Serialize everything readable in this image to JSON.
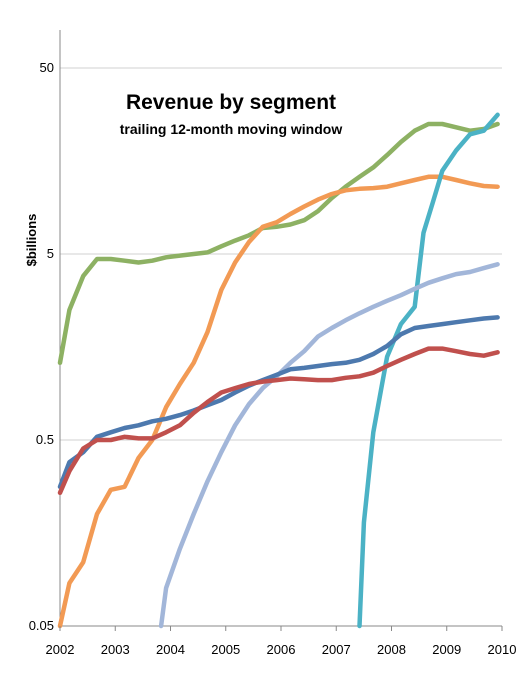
{
  "chart_data": {
    "type": "line",
    "title": "Revenue by segment",
    "subtitle": "trailing 12-month moving window",
    "ylabel": "$billions",
    "xlabel": "",
    "y_scale": "log",
    "ylim": [
      0.05,
      80
    ],
    "xlim": [
      2002,
      2010
    ],
    "y_ticks": [
      {
        "value": 0.05,
        "label": "0.05"
      },
      {
        "value": 0.5,
        "label": "0.5"
      },
      {
        "value": 5,
        "label": "5"
      },
      {
        "value": 50,
        "label": "50"
      }
    ],
    "x_ticks": [
      {
        "value": 2002,
        "label": "2002"
      },
      {
        "value": 2003,
        "label": "2003"
      },
      {
        "value": 2004,
        "label": "2004"
      },
      {
        "value": 2005,
        "label": "2005"
      },
      {
        "value": 2006,
        "label": "2006"
      },
      {
        "value": 2007,
        "label": "2007"
      },
      {
        "value": 2008,
        "label": "2008"
      },
      {
        "value": 2009,
        "label": "2009"
      },
      {
        "value": 2010,
        "label": "2010"
      }
    ],
    "grid": true,
    "legend": "none",
    "series": [
      {
        "color": "#8db163",
        "points": [
          [
            2002,
            1.3
          ],
          [
            2002.17,
            2.5
          ],
          [
            2002.42,
            3.8
          ],
          [
            2002.67,
            4.7
          ],
          [
            2002.92,
            4.7
          ],
          [
            2003.17,
            4.6
          ],
          [
            2003.42,
            4.5
          ],
          [
            2003.67,
            4.6
          ],
          [
            2003.92,
            4.8
          ],
          [
            2004.17,
            4.9
          ],
          [
            2004.42,
            5.0
          ],
          [
            2004.67,
            5.1
          ],
          [
            2004.92,
            5.5
          ],
          [
            2005.17,
            5.9
          ],
          [
            2005.42,
            6.3
          ],
          [
            2005.67,
            6.9
          ],
          [
            2005.92,
            7.0
          ],
          [
            2006.17,
            7.2
          ],
          [
            2006.42,
            7.6
          ],
          [
            2006.67,
            8.5
          ],
          [
            2006.92,
            10.0
          ],
          [
            2007.17,
            11.5
          ],
          [
            2007.42,
            13.0
          ],
          [
            2007.67,
            14.6
          ],
          [
            2007.92,
            17.0
          ],
          [
            2008.17,
            20.0
          ],
          [
            2008.42,
            23.0
          ],
          [
            2008.67,
            25.0
          ],
          [
            2008.92,
            25.0
          ],
          [
            2009.17,
            24.0
          ],
          [
            2009.42,
            23.0
          ],
          [
            2009.67,
            23.5
          ],
          [
            2009.92,
            25.0
          ]
        ]
      },
      {
        "color": "#f29a54",
        "points": [
          [
            2002,
            0.05
          ],
          [
            2002.17,
            0.085
          ],
          [
            2002.42,
            0.11
          ],
          [
            2002.67,
            0.2
          ],
          [
            2002.92,
            0.27
          ],
          [
            2003.17,
            0.28
          ],
          [
            2003.42,
            0.4
          ],
          [
            2003.67,
            0.5
          ],
          [
            2003.92,
            0.75
          ],
          [
            2004.17,
            1.0
          ],
          [
            2004.42,
            1.3
          ],
          [
            2004.67,
            1.9
          ],
          [
            2004.92,
            3.2
          ],
          [
            2005.17,
            4.5
          ],
          [
            2005.42,
            5.8
          ],
          [
            2005.67,
            7.0
          ],
          [
            2005.92,
            7.4
          ],
          [
            2006.17,
            8.2
          ],
          [
            2006.42,
            9.0
          ],
          [
            2006.67,
            9.8
          ],
          [
            2006.92,
            10.5
          ],
          [
            2007.17,
            11.0
          ],
          [
            2007.42,
            11.2
          ],
          [
            2007.67,
            11.3
          ],
          [
            2007.92,
            11.5
          ],
          [
            2008.17,
            12.0
          ],
          [
            2008.42,
            12.5
          ],
          [
            2008.67,
            13.0
          ],
          [
            2008.92,
            13.0
          ],
          [
            2009.17,
            12.5
          ],
          [
            2009.42,
            12.0
          ],
          [
            2009.67,
            11.6
          ],
          [
            2009.92,
            11.5
          ]
        ]
      },
      {
        "color": "#4bb2c5",
        "points": [
          [
            2007.42,
            0.05
          ],
          [
            2007.5,
            0.18
          ],
          [
            2007.67,
            0.55
          ],
          [
            2007.83,
            1.0
          ],
          [
            2007.92,
            1.4
          ],
          [
            2008.17,
            2.1
          ],
          [
            2008.42,
            2.6
          ],
          [
            2008.58,
            6.5
          ],
          [
            2008.75,
            9.5
          ],
          [
            2008.92,
            14.0
          ],
          [
            2009.17,
            18.0
          ],
          [
            2009.42,
            22.0
          ],
          [
            2009.67,
            23.0
          ],
          [
            2009.92,
            28.0
          ]
        ]
      },
      {
        "color": "#a2b6d9",
        "points": [
          [
            2003.83,
            0.05
          ],
          [
            2003.92,
            0.08
          ],
          [
            2004.17,
            0.13
          ],
          [
            2004.42,
            0.2
          ],
          [
            2004.67,
            0.3
          ],
          [
            2004.92,
            0.43
          ],
          [
            2005.17,
            0.6
          ],
          [
            2005.42,
            0.78
          ],
          [
            2005.67,
            0.95
          ],
          [
            2005.92,
            1.1
          ],
          [
            2006.17,
            1.3
          ],
          [
            2006.42,
            1.5
          ],
          [
            2006.67,
            1.8
          ],
          [
            2006.92,
            2.0
          ],
          [
            2007.17,
            2.2
          ],
          [
            2007.42,
            2.4
          ],
          [
            2007.67,
            2.6
          ],
          [
            2007.92,
            2.8
          ],
          [
            2008.17,
            3.0
          ],
          [
            2008.42,
            3.25
          ],
          [
            2008.67,
            3.5
          ],
          [
            2008.92,
            3.7
          ],
          [
            2009.17,
            3.9
          ],
          [
            2009.42,
            4.0
          ],
          [
            2009.67,
            4.2
          ],
          [
            2009.92,
            4.4
          ]
        ]
      },
      {
        "color": "#4d79ae",
        "points": [
          [
            2002,
            0.28
          ],
          [
            2002.17,
            0.38
          ],
          [
            2002.42,
            0.43
          ],
          [
            2002.67,
            0.52
          ],
          [
            2002.92,
            0.55
          ],
          [
            2003.17,
            0.58
          ],
          [
            2003.42,
            0.6
          ],
          [
            2003.67,
            0.63
          ],
          [
            2003.92,
            0.65
          ],
          [
            2004.17,
            0.68
          ],
          [
            2004.42,
            0.72
          ],
          [
            2004.67,
            0.77
          ],
          [
            2004.92,
            0.82
          ],
          [
            2005.17,
            0.9
          ],
          [
            2005.42,
            0.98
          ],
          [
            2005.67,
            1.05
          ],
          [
            2005.92,
            1.12
          ],
          [
            2006.17,
            1.2
          ],
          [
            2006.42,
            1.22
          ],
          [
            2006.67,
            1.25
          ],
          [
            2006.92,
            1.28
          ],
          [
            2007.17,
            1.3
          ],
          [
            2007.42,
            1.35
          ],
          [
            2007.67,
            1.45
          ],
          [
            2007.92,
            1.6
          ],
          [
            2008.17,
            1.85
          ],
          [
            2008.42,
            2.0
          ],
          [
            2008.67,
            2.05
          ],
          [
            2008.92,
            2.1
          ],
          [
            2009.17,
            2.15
          ],
          [
            2009.42,
            2.2
          ],
          [
            2009.67,
            2.25
          ],
          [
            2009.92,
            2.28
          ]
        ]
      },
      {
        "color": "#c0504d",
        "points": [
          [
            2002,
            0.26
          ],
          [
            2002.17,
            0.34
          ],
          [
            2002.42,
            0.45
          ],
          [
            2002.67,
            0.5
          ],
          [
            2002.92,
            0.5
          ],
          [
            2003.17,
            0.52
          ],
          [
            2003.42,
            0.51
          ],
          [
            2003.67,
            0.51
          ],
          [
            2003.92,
            0.55
          ],
          [
            2004.17,
            0.6
          ],
          [
            2004.42,
            0.7
          ],
          [
            2004.67,
            0.8
          ],
          [
            2004.92,
            0.9
          ],
          [
            2005.17,
            0.95
          ],
          [
            2005.42,
            1.0
          ],
          [
            2005.67,
            1.03
          ],
          [
            2005.92,
            1.05
          ],
          [
            2006.17,
            1.07
          ],
          [
            2006.42,
            1.06
          ],
          [
            2006.67,
            1.05
          ],
          [
            2006.92,
            1.05
          ],
          [
            2007.17,
            1.08
          ],
          [
            2007.42,
            1.1
          ],
          [
            2007.67,
            1.15
          ],
          [
            2007.92,
            1.25
          ],
          [
            2008.17,
            1.35
          ],
          [
            2008.42,
            1.45
          ],
          [
            2008.67,
            1.55
          ],
          [
            2008.92,
            1.55
          ],
          [
            2009.17,
            1.5
          ],
          [
            2009.42,
            1.45
          ],
          [
            2009.67,
            1.42
          ],
          [
            2009.92,
            1.48
          ]
        ]
      }
    ]
  }
}
